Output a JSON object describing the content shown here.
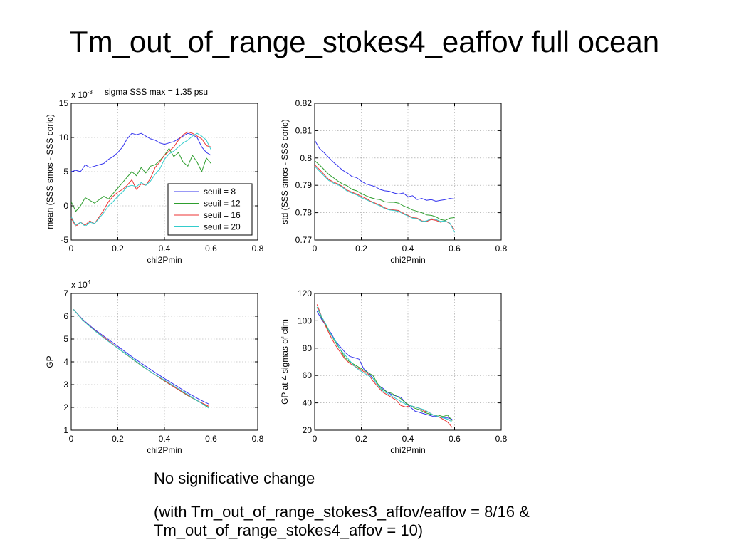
{
  "slide": {
    "title": "Tm_out_of_range_stokes4_eaffov full ocean",
    "caption_line1": "No significative change",
    "caption_line2": "(with Tm_out_of_range_stokes3_affov/eaffov = 8/16 & Tm_out_of_range_stokes4_affov = 10)"
  },
  "colors": {
    "seuil8": "#3333ee",
    "seuil12": "#2e9e2e",
    "seuil16": "#ee3333",
    "seuil20": "#33cccc"
  },
  "chart_data": [
    {
      "type": "line",
      "title": "sigma SSS max = 1.35 psu",
      "xlabel": "chi2Pmin",
      "ylabel": "mean (SSS smos - SSS corio)",
      "y_multiplier": "x 10",
      "y_multiplier_exp": "-3",
      "xlim": [
        0,
        0.8
      ],
      "ylim": [
        -5,
        15
      ],
      "xticks": [
        "0",
        "0.2",
        "0.4",
        "0.6",
        "0.8"
      ],
      "yticks": [
        "-5",
        "0",
        "5",
        "10",
        "15"
      ],
      "grid": true,
      "legend": {
        "placement": "bottom-right",
        "entries": [
          "seuil = 8",
          "seuil = 12",
          "seuil = 16",
          "seuil = 20"
        ]
      },
      "x": [
        0,
        0.02,
        0.04,
        0.06,
        0.08,
        0.1,
        0.12,
        0.14,
        0.16,
        0.18,
        0.2,
        0.22,
        0.24,
        0.26,
        0.28,
        0.3,
        0.32,
        0.34,
        0.36,
        0.38,
        0.4,
        0.42,
        0.44,
        0.46,
        0.48,
        0.5,
        0.52,
        0.54,
        0.56,
        0.58,
        0.6
      ],
      "series": [
        {
          "name": "seuil = 8",
          "values": [
            5.0,
            5.2,
            5.0,
            6.0,
            5.6,
            5.8,
            6.0,
            6.2,
            6.8,
            7.2,
            7.8,
            8.6,
            9.8,
            10.6,
            10.4,
            10.6,
            10.2,
            9.8,
            9.6,
            9.2,
            9.0,
            9.2,
            9.4,
            9.8,
            10.2,
            10.6,
            10.4,
            10.0,
            8.6,
            7.8,
            7.4
          ]
        },
        {
          "name": "seuil = 12",
          "values": [
            0.6,
            -0.8,
            0,
            1.2,
            0.8,
            0.4,
            0.9,
            1.4,
            1.0,
            1.8,
            2.6,
            3.4,
            4.2,
            5.0,
            4.4,
            5.6,
            4.8,
            5.8,
            6.0,
            6.6,
            7.4,
            8.4,
            7.2,
            7.8,
            6.4,
            5.8,
            7.4,
            6.4,
            5.0,
            7.0,
            6.2
          ]
        },
        {
          "name": "seuil = 16",
          "values": [
            -1.8,
            -3.0,
            -2.4,
            -2.8,
            -2.2,
            -2.6,
            -1.6,
            -0.6,
            0.6,
            1.4,
            2.0,
            2.4,
            3.0,
            3.8,
            2.4,
            3.2,
            3.0,
            4.0,
            5.6,
            6.4,
            7.4,
            8.0,
            8.6,
            9.6,
            10.4,
            10.8,
            10.6,
            10.2,
            9.8,
            8.8,
            8.6
          ]
        },
        {
          "name": "seuil = 20",
          "values": [
            -1.6,
            -2.8,
            -2.4,
            -3.0,
            -2.4,
            -2.6,
            -1.8,
            -1.0,
            0.0,
            0.6,
            1.4,
            2.0,
            2.8,
            3.0,
            2.8,
            3.4,
            3.0,
            3.6,
            4.6,
            5.4,
            6.8,
            7.6,
            8.0,
            8.6,
            9.2,
            9.6,
            10.2,
            10.6,
            10.2,
            9.6,
            8.2
          ]
        }
      ]
    },
    {
      "type": "line",
      "xlabel": "chi2Pmin",
      "ylabel": "std (SSS smos - SSS corio)",
      "xlim": [
        0,
        0.8
      ],
      "ylim": [
        0.77,
        0.82
      ],
      "xticks": [
        "0",
        "0.2",
        "0.4",
        "0.6",
        "0.8"
      ],
      "yticks": [
        "0.77",
        "0.78",
        "0.79",
        "0.8",
        "0.81",
        "0.82"
      ],
      "grid": true,
      "x": [
        0,
        0.02,
        0.04,
        0.06,
        0.08,
        0.1,
        0.12,
        0.14,
        0.16,
        0.18,
        0.2,
        0.22,
        0.24,
        0.26,
        0.28,
        0.3,
        0.32,
        0.34,
        0.36,
        0.38,
        0.4,
        0.42,
        0.44,
        0.46,
        0.48,
        0.5,
        0.52,
        0.54,
        0.56,
        0.58,
        0.6
      ],
      "series": [
        {
          "values": [
            0.8065,
            0.8035,
            0.802,
            0.8002,
            0.7985,
            0.797,
            0.7955,
            0.7945,
            0.7932,
            0.7928,
            0.7915,
            0.7905,
            0.79,
            0.7895,
            0.7885,
            0.788,
            0.7878,
            0.7872,
            0.7868,
            0.7872,
            0.7858,
            0.7862,
            0.7848,
            0.7852,
            0.7845,
            0.7848,
            0.7842,
            0.7845,
            0.7848,
            0.7852,
            0.785
          ]
        },
        {
          "values": [
            0.799,
            0.7975,
            0.7958,
            0.794,
            0.7928,
            0.7915,
            0.7905,
            0.7898,
            0.7885,
            0.788,
            0.787,
            0.7862,
            0.7855,
            0.785,
            0.7848,
            0.784,
            0.7838,
            0.7838,
            0.7835,
            0.7825,
            0.7818,
            0.781,
            0.7805,
            0.78,
            0.7792,
            0.779,
            0.7785,
            0.7775,
            0.7772,
            0.778,
            0.7782
          ]
        },
        {
          "values": [
            0.7975,
            0.7958,
            0.794,
            0.7922,
            0.7912,
            0.7905,
            0.7895,
            0.7882,
            0.7875,
            0.7868,
            0.786,
            0.7852,
            0.7842,
            0.7835,
            0.7828,
            0.7818,
            0.7812,
            0.781,
            0.7808,
            0.7798,
            0.779,
            0.7782,
            0.778,
            0.777,
            0.7768,
            0.7775,
            0.7772,
            0.7765,
            0.777,
            0.776,
            0.7738
          ]
        },
        {
          "values": [
            0.797,
            0.7952,
            0.7935,
            0.7918,
            0.7908,
            0.7902,
            0.7892,
            0.7878,
            0.7872,
            0.7865,
            0.7855,
            0.7848,
            0.784,
            0.7832,
            0.7825,
            0.7815,
            0.781,
            0.7808,
            0.7805,
            0.7795,
            0.7788,
            0.778,
            0.7778,
            0.7768,
            0.777,
            0.7778,
            0.7775,
            0.7768,
            0.777,
            0.7762,
            0.7728
          ]
        }
      ]
    },
    {
      "type": "line",
      "xlabel": "chi2Pmin",
      "ylabel": "GP",
      "y_multiplier": "x 10",
      "y_multiplier_exp": "4",
      "xlim": [
        0,
        0.8
      ],
      "ylim": [
        1,
        7
      ],
      "xticks": [
        "0",
        "0.2",
        "0.4",
        "0.6",
        "0.8"
      ],
      "yticks": [
        "1",
        "2",
        "3",
        "4",
        "5",
        "6",
        "7"
      ],
      "grid": true,
      "x": [
        0.01,
        0.05,
        0.1,
        0.15,
        0.2,
        0.25,
        0.3,
        0.35,
        0.4,
        0.45,
        0.5,
        0.55,
        0.59
      ],
      "series": [
        {
          "values": [
            6.3,
            5.85,
            5.42,
            5.05,
            4.68,
            4.3,
            3.94,
            3.6,
            3.27,
            2.95,
            2.63,
            2.35,
            2.15
          ]
        },
        {
          "values": [
            6.3,
            5.82,
            5.38,
            4.98,
            4.6,
            4.22,
            3.84,
            3.5,
            3.16,
            2.84,
            2.52,
            2.24,
            2.0
          ]
        },
        {
          "values": [
            6.3,
            5.83,
            5.38,
            5.0,
            4.61,
            4.23,
            3.86,
            3.5,
            3.17,
            2.84,
            2.53,
            2.25,
            2.05
          ]
        },
        {
          "values": [
            6.3,
            5.82,
            5.37,
            4.97,
            4.6,
            4.24,
            3.86,
            3.5,
            3.2,
            2.88,
            2.56,
            2.24,
            1.97
          ]
        }
      ]
    },
    {
      "type": "line",
      "xlabel": "chi2Pmin",
      "ylabel": "GP at 4 sigmas of clim",
      "xlim": [
        0,
        0.8
      ],
      "ylim": [
        20,
        120
      ],
      "xticks": [
        "0",
        "0.2",
        "0.4",
        "0.6",
        "0.8"
      ],
      "yticks": [
        "20",
        "40",
        "60",
        "80",
        "100",
        "120"
      ],
      "grid": true,
      "x": [
        0.01,
        0.03,
        0.05,
        0.07,
        0.09,
        0.11,
        0.13,
        0.15,
        0.17,
        0.19,
        0.21,
        0.23,
        0.25,
        0.27,
        0.29,
        0.31,
        0.33,
        0.35,
        0.37,
        0.39,
        0.41,
        0.43,
        0.45,
        0.47,
        0.49,
        0.51,
        0.53,
        0.55,
        0.57,
        0.59
      ],
      "series": [
        {
          "values": [
            107,
            101,
            96,
            91,
            85,
            81,
            77,
            74,
            73,
            72,
            65,
            62,
            58,
            53,
            51,
            48,
            46,
            45,
            44,
            40,
            37,
            34,
            33,
            32,
            31,
            30,
            30,
            29,
            29,
            28
          ]
        },
        {
          "values": [
            110,
            102,
            96,
            90,
            84,
            79,
            73,
            70,
            68,
            66,
            64,
            62,
            60,
            54,
            50,
            48,
            47,
            45,
            43,
            40,
            38,
            36,
            35,
            33,
            32,
            31,
            31,
            30,
            31,
            27
          ]
        },
        {
          "values": [
            112,
            103,
            95,
            88,
            82,
            77,
            72,
            69,
            67,
            65,
            63,
            61,
            56,
            52,
            48,
            46,
            44,
            42,
            38,
            37,
            38,
            37,
            36,
            34,
            33,
            31,
            30,
            28,
            26,
            22
          ]
        },
        {
          "values": [
            110,
            103,
            97,
            90,
            85,
            79,
            75,
            71,
            67,
            64,
            62,
            60,
            58,
            53,
            49,
            47,
            45,
            43,
            41,
            39,
            38,
            37,
            36,
            35,
            33,
            31,
            30,
            29,
            28,
            26
          ]
        }
      ]
    }
  ]
}
